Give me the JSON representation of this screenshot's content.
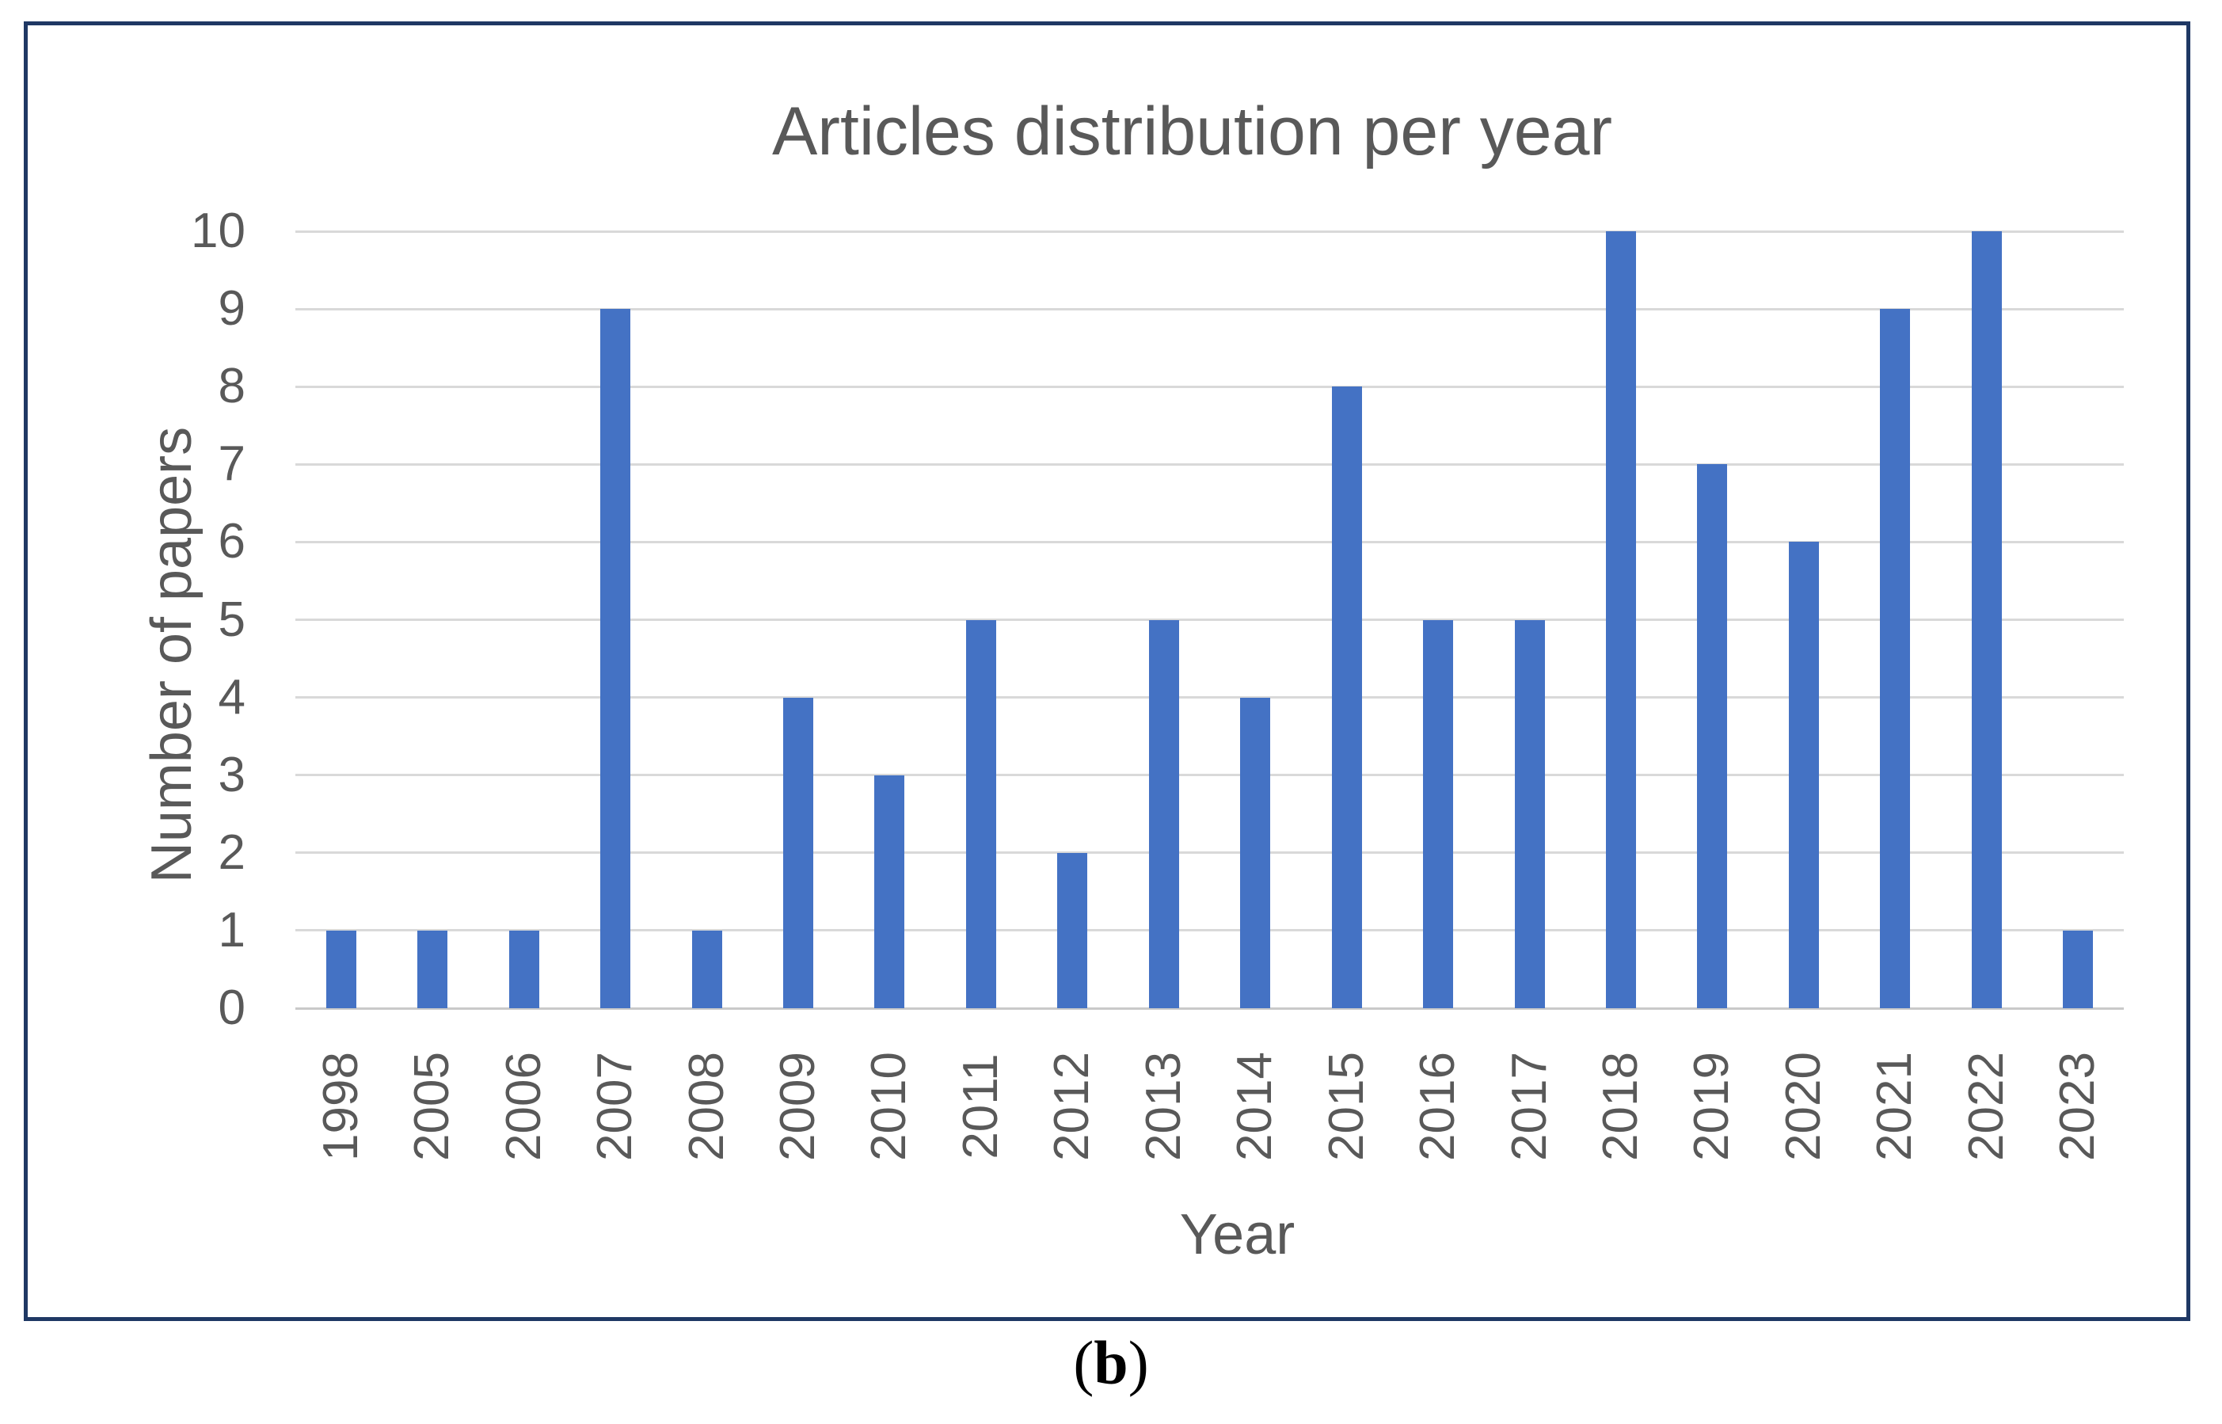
{
  "figure": {
    "caption": {
      "open": "(",
      "letter": "b",
      "close": ")"
    }
  },
  "chart_data": {
    "type": "bar",
    "title": "Articles distribution per year",
    "xlabel": "Year",
    "ylabel": "Number of papers",
    "categories": [
      "1998",
      "2005",
      "2006",
      "2007",
      "2008",
      "2009",
      "2010",
      "2011",
      "2012",
      "2013",
      "2014",
      "2015",
      "2016",
      "2017",
      "2018",
      "2019",
      "2020",
      "2021",
      "2022",
      "2023"
    ],
    "values": [
      1,
      1,
      1,
      9,
      1,
      4,
      3,
      5,
      2,
      5,
      4,
      8,
      5,
      5,
      10,
      7,
      6,
      9,
      10,
      1
    ],
    "ylim": [
      0,
      10
    ],
    "yticks": [
      0,
      1,
      2,
      3,
      4,
      5,
      6,
      7,
      8,
      9,
      10
    ],
    "grid": true,
    "legend": "none",
    "colors": {
      "bar": "#4472c4",
      "gridline": "#d9d9d9",
      "axis_line": "#c9c9c9",
      "text": "#595959",
      "frame_border": "#1f3864",
      "caption_text": "#000000"
    }
  }
}
